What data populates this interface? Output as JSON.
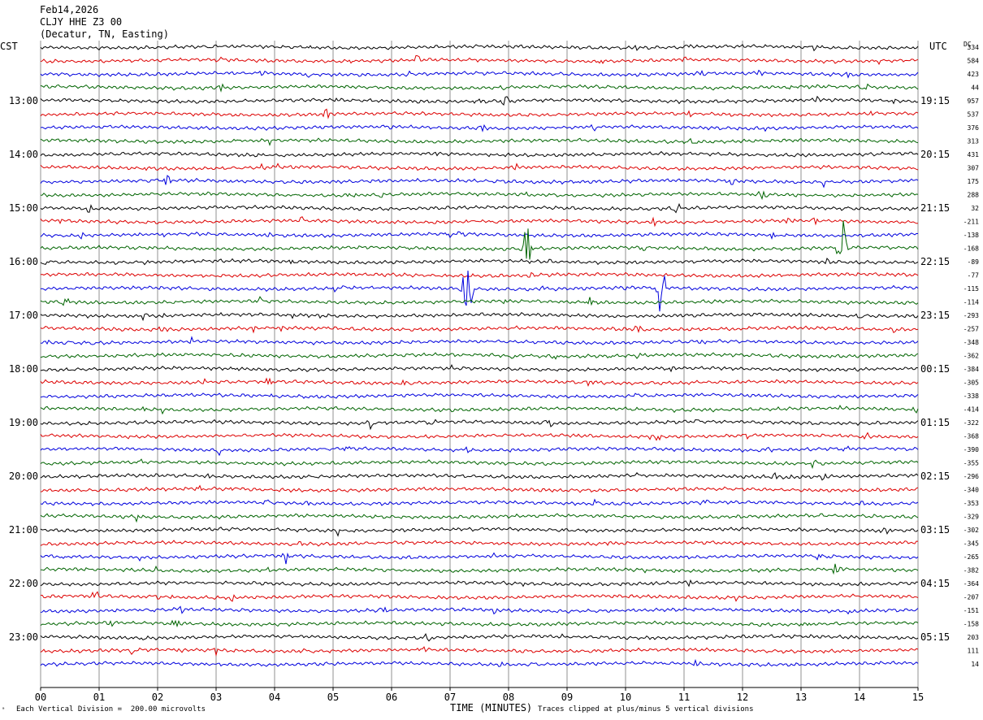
{
  "header": {
    "date": "Feb14,2026",
    "station": "CLJY HHE Z3 00",
    "location": "(Decatur, TN, Easting)"
  },
  "left_axis_title": "CST",
  "right_axis_title": "UTC",
  "dc_label": "DC",
  "footer": {
    "scale_note": "Each Vertical Division =  200.00 microvolts",
    "xlabel": "TIME (MINUTES)",
    "clip_note": "Traces clipped at plus/minus 5 vertical divisions",
    "corner_mark": "ᵃ"
  },
  "colors": {
    "black": "#000000",
    "red": "#dd0000",
    "blue": "#0000dd",
    "green": "#006400",
    "grid": "#909090"
  },
  "chart_data": {
    "type": "line",
    "title": "CLJY HHE Z3 00",
    "xlabel": "TIME (MINUTES)",
    "ylabel": "CST",
    "xlim": [
      0,
      15
    ],
    "x_ticks": [
      "00",
      "01",
      "02",
      "03",
      "04",
      "05",
      "06",
      "07",
      "08",
      "09",
      "10",
      "11",
      "12",
      "13",
      "14",
      "15"
    ],
    "left_time_labels": [
      "13:00",
      "14:00",
      "15:00",
      "16:00",
      "17:00",
      "18:00",
      "19:00",
      "20:00",
      "21:00",
      "22:00",
      "23:00"
    ],
    "right_time_labels": [
      "19:15",
      "20:15",
      "21:15",
      "22:15",
      "23:15",
      "00:15",
      "01:15",
      "02:15",
      "03:15",
      "04:15",
      "05:15"
    ],
    "trace_colors": [
      "black",
      "red",
      "blue",
      "green"
    ],
    "trace_dc_offsets": [
      "334",
      "584",
      "423",
      "44",
      "957",
      "537",
      "376",
      "313",
      "431",
      "307",
      "175",
      "288",
      "32",
      "-211",
      "-138",
      "-168",
      "-89",
      "-77",
      "-115",
      "-114",
      "-293",
      "-257",
      "-348",
      "-362",
      "-384",
      "-305",
      "-338",
      "-414",
      "-322",
      "-368",
      "-390",
      "-355",
      "-296",
      "-340",
      "-353",
      "-329",
      "-302",
      "-345",
      "-265",
      "-382",
      "-364",
      "-207",
      "-151",
      "-158",
      "203",
      "111",
      "14"
    ],
    "notable_events": [
      {
        "trace": 15,
        "minute": 8.3,
        "label": "large clipped event"
      },
      {
        "trace": 15,
        "minute": 13.7,
        "label": "large clipped event"
      },
      {
        "trace": 18,
        "minute": 7.3,
        "label": "large event"
      },
      {
        "trace": 18,
        "minute": 10.6,
        "label": "large event"
      }
    ],
    "scale_microvolts_per_division": 200.0
  }
}
